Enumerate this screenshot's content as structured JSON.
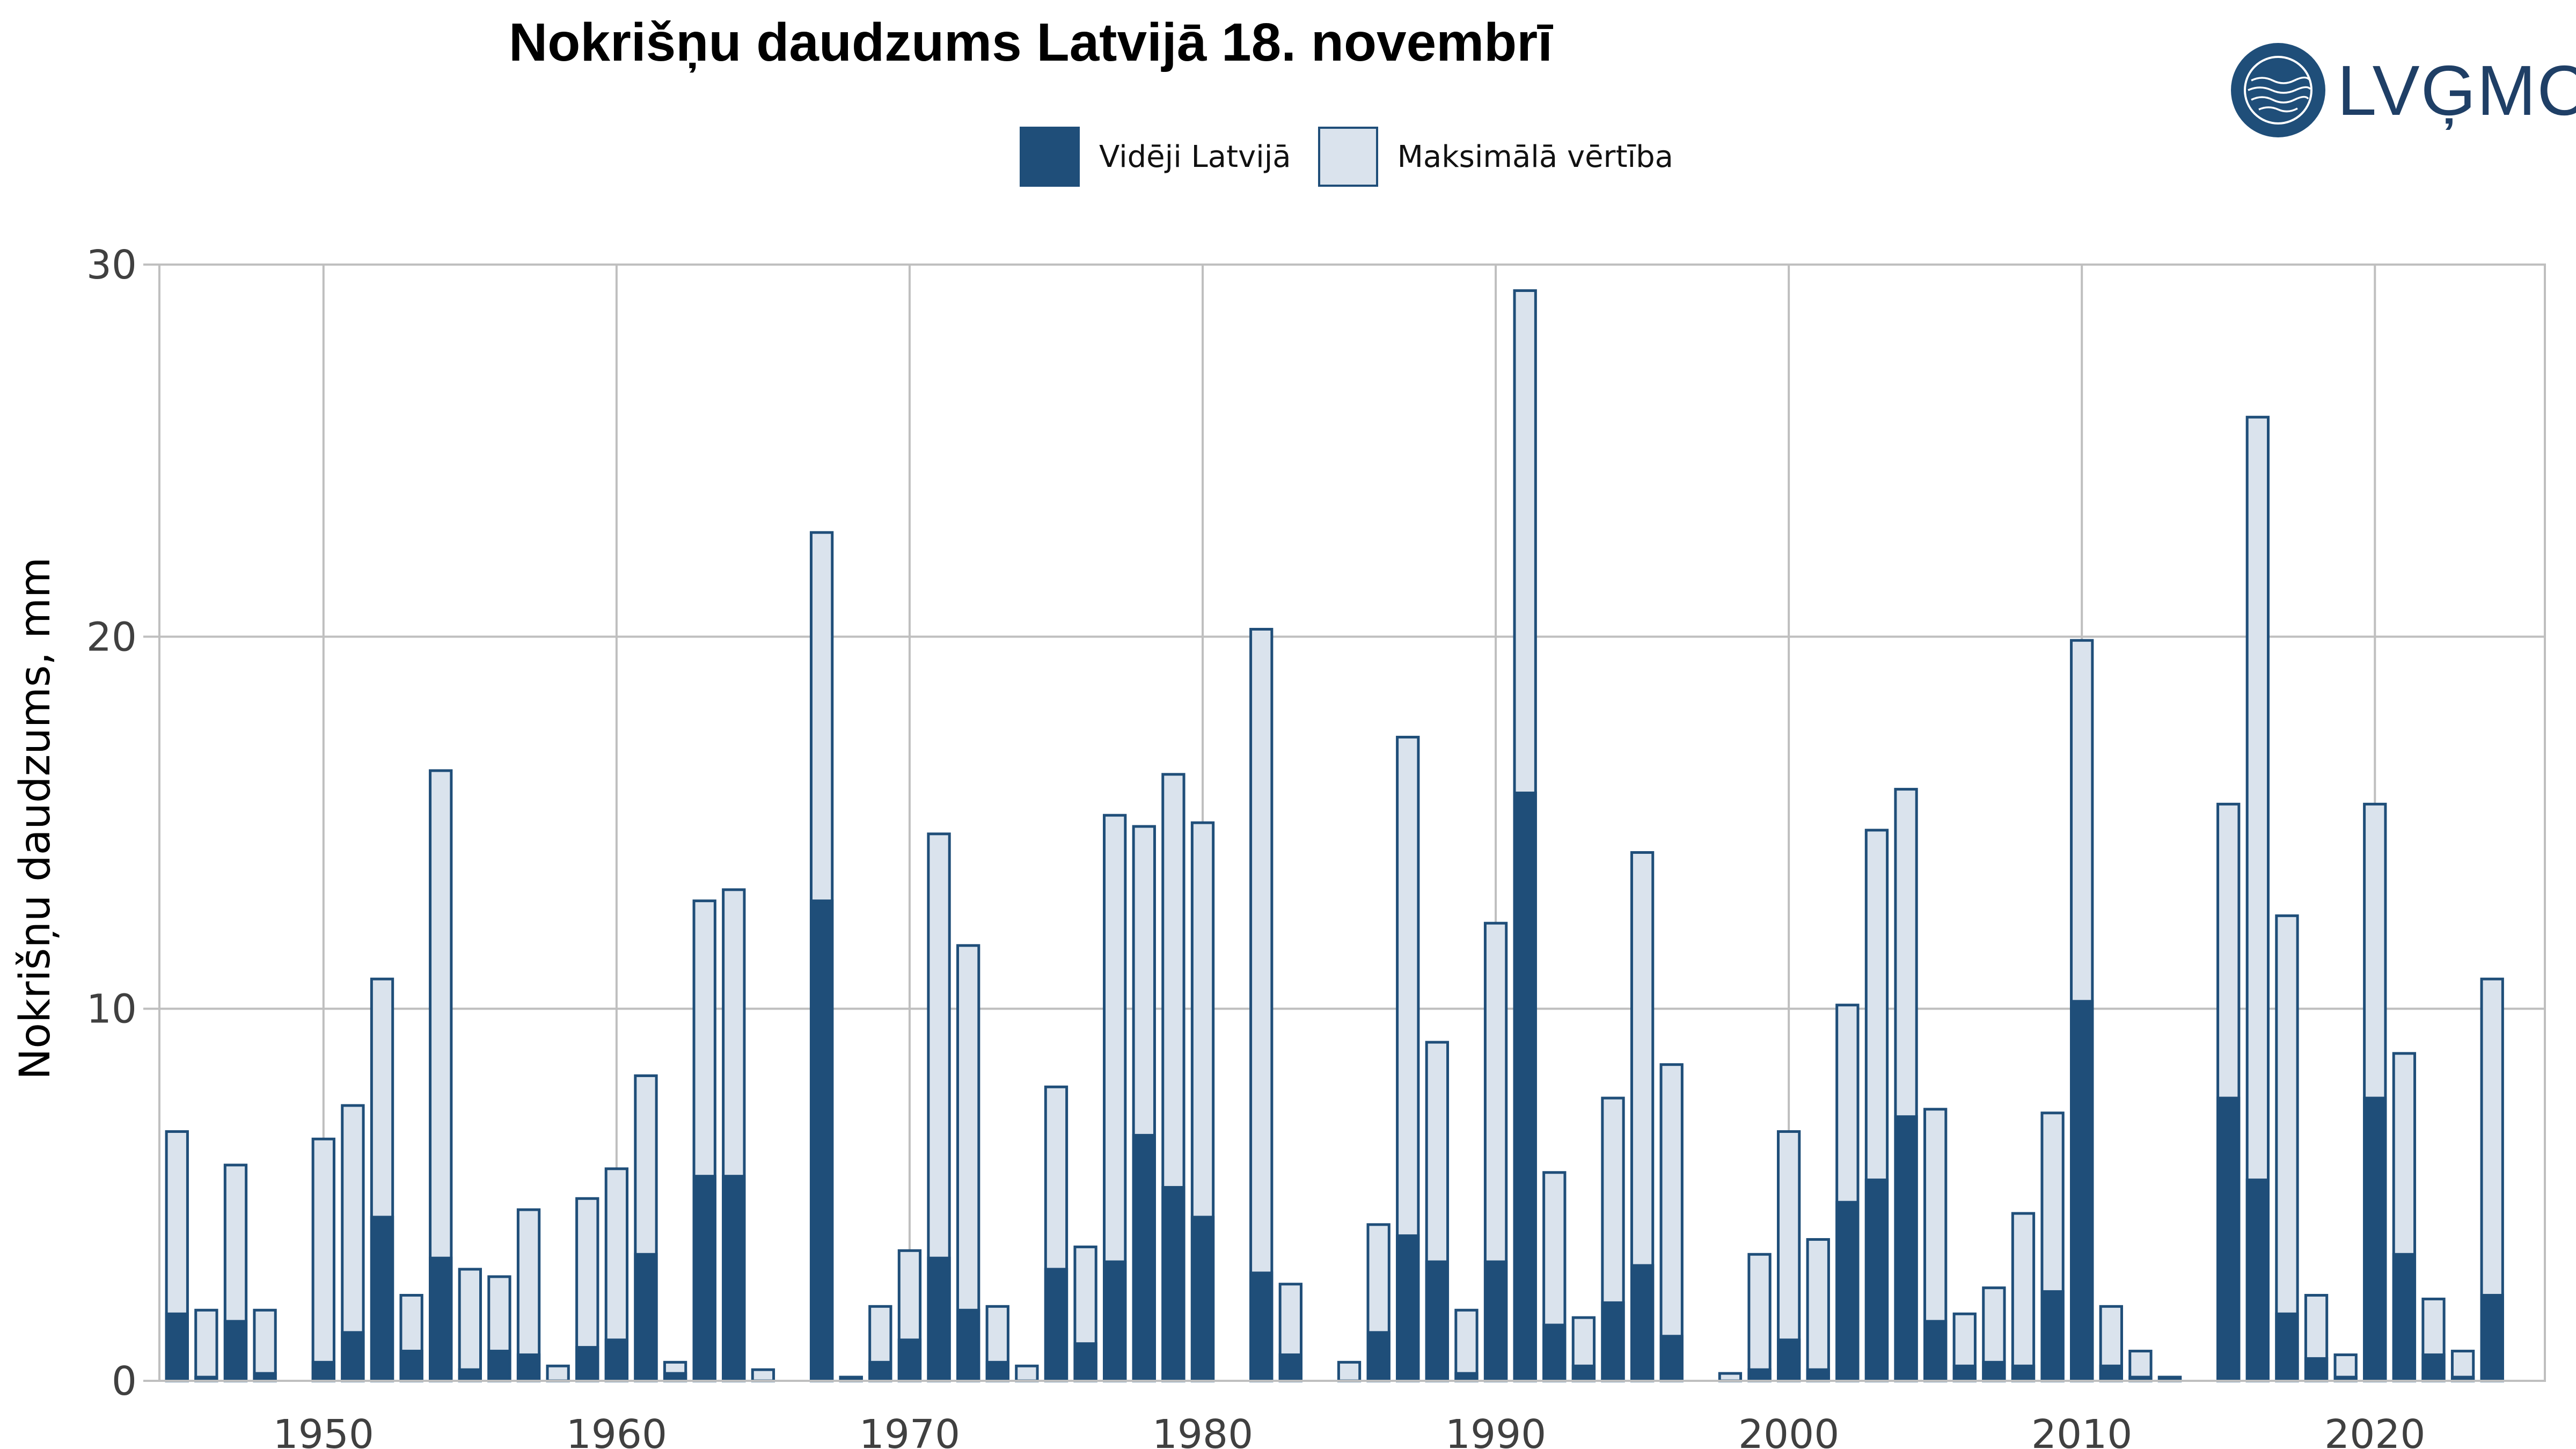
{
  "logo": {
    "text": "LVĢMC"
  },
  "colors": {
    "average": "#1f4e79",
    "max_fill": "#dae3ed",
    "max_border": "#1f4e79",
    "grid": "#bfbfbf",
    "text": "#404040"
  },
  "chart_data": {
    "type": "bar",
    "title": "Nokrišņu daudzums Latvijā 18. novembrī",
    "ylabel": "Nokrišņu daudzums, mm",
    "xlabel": "",
    "ylim": [
      0,
      30
    ],
    "yticks": [
      "0",
      "10",
      "20",
      "30"
    ],
    "xticks": [
      "1950",
      "1960",
      "1970",
      "1980",
      "1990",
      "2000",
      "2010",
      "2020"
    ],
    "grid": true,
    "legend_position": "top",
    "x": [
      1945,
      1946,
      1947,
      1948,
      1949,
      1950,
      1951,
      1952,
      1953,
      1954,
      1955,
      1956,
      1957,
      1958,
      1959,
      1960,
      1961,
      1962,
      1963,
      1964,
      1965,
      1966,
      1967,
      1968,
      1969,
      1970,
      1971,
      1972,
      1973,
      1974,
      1975,
      1976,
      1977,
      1978,
      1979,
      1980,
      1981,
      1982,
      1983,
      1984,
      1985,
      1986,
      1987,
      1988,
      1989,
      1990,
      1991,
      1992,
      1993,
      1994,
      1995,
      1996,
      1997,
      1998,
      1999,
      2000,
      2001,
      2002,
      2003,
      2004,
      2005,
      2006,
      2007,
      2008,
      2009,
      2010,
      2011,
      2012,
      2013,
      2014,
      2015,
      2016,
      2017,
      2018,
      2019,
      2020,
      2021,
      2022,
      2023,
      2024
    ],
    "series": [
      {
        "name": "Vidēji Latvijā",
        "values": [
          1.8,
          0.1,
          1.6,
          0.2,
          0.0,
          0.5,
          1.3,
          4.4,
          0.8,
          3.3,
          0.3,
          0.8,
          0.7,
          0.0,
          0.9,
          1.1,
          3.4,
          0.2,
          5.5,
          5.5,
          0.0,
          0.0,
          12.9,
          0.1,
          0.5,
          1.1,
          3.3,
          1.9,
          0.5,
          0.0,
          3.0,
          1.0,
          3.2,
          6.6,
          5.2,
          4.4,
          0.0,
          2.9,
          0.7,
          0.0,
          0.0,
          1.3,
          3.9,
          3.2,
          0.2,
          3.2,
          15.8,
          1.5,
          0.4,
          2.1,
          3.1,
          1.2,
          0.0,
          0.0,
          0.3,
          1.1,
          0.3,
          4.8,
          5.4,
          7.1,
          1.6,
          0.4,
          0.5,
          0.4,
          2.4,
          10.2,
          0.4,
          0.1,
          0.1,
          0.0,
          7.6,
          5.4,
          1.8,
          0.6,
          0.1,
          7.6,
          3.4,
          0.7,
          0.1,
          2.3
        ]
      },
      {
        "name": "Maksimālā vērtība",
        "values": [
          6.7,
          1.9,
          5.8,
          1.9,
          0.0,
          6.5,
          7.4,
          10.8,
          2.3,
          16.4,
          3.0,
          2.8,
          4.6,
          0.4,
          4.9,
          5.7,
          8.2,
          0.5,
          12.9,
          13.2,
          0.3,
          0.0,
          22.8,
          0.1,
          2.0,
          3.5,
          14.7,
          11.7,
          2.0,
          0.4,
          7.9,
          3.6,
          15.2,
          14.9,
          16.3,
          15.0,
          0.0,
          20.2,
          2.6,
          0.0,
          0.5,
          4.2,
          17.3,
          9.1,
          1.9,
          12.3,
          29.3,
          5.6,
          1.7,
          7.6,
          14.2,
          8.5,
          0.0,
          0.2,
          3.4,
          6.7,
          3.8,
          10.1,
          14.8,
          15.9,
          7.3,
          1.8,
          2.5,
          4.5,
          7.2,
          19.9,
          2.0,
          0.8,
          0.1,
          0.0,
          15.5,
          25.9,
          12.5,
          2.3,
          0.7,
          15.5,
          8.8,
          2.2,
          0.8,
          10.8
        ]
      }
    ]
  }
}
